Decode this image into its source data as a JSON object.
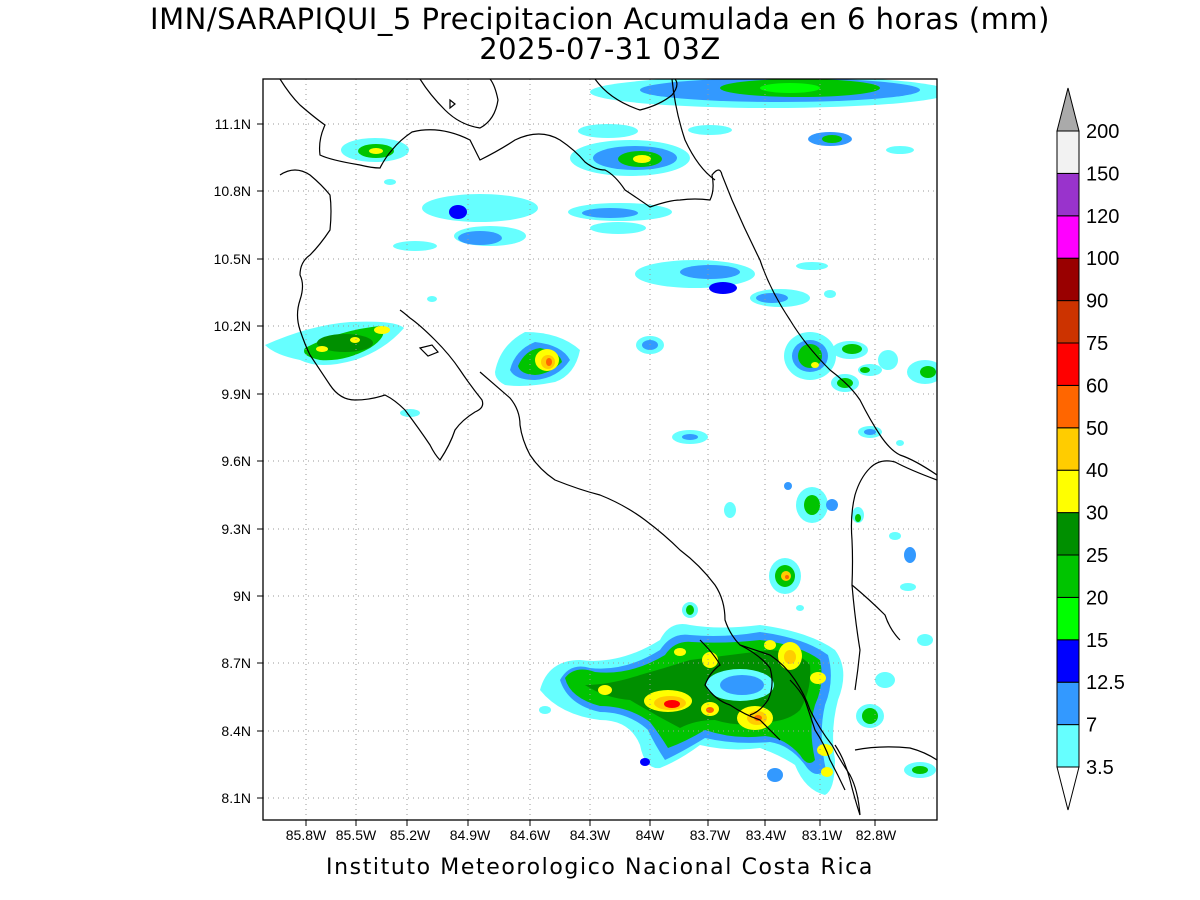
{
  "title": "IMN/SARAPIQUI_5 Precipitacion Acumulada en 6 horas (mm)",
  "subtitle": "2025-07-31 03Z",
  "footer": "Instituto Meteorologico Nacional Costa Rica",
  "map": {
    "lon_range": [
      -86.0,
      -83.0
    ],
    "lat_range": [
      8.0,
      11.3
    ],
    "lon_ticks": [
      "85.8W",
      "85.5W",
      "85.2W",
      "84.9W",
      "84.6W",
      "84.3W",
      "84W",
      "83.7W",
      "83.4W",
      "83.1W",
      "82.8W"
    ],
    "lat_ticks": [
      "11.1N",
      "10.8N",
      "10.5N",
      "10.2N",
      "9.9N",
      "9.6N",
      "9.3N",
      "9N",
      "8.7N",
      "8.4N",
      "8.1N"
    ],
    "grid": true
  },
  "colorbar": {
    "levels": [
      "3.5",
      "7",
      "12.5",
      "15",
      "20",
      "25",
      "30",
      "40",
      "50",
      "60",
      "75",
      "90",
      "100",
      "120",
      "150",
      "200"
    ],
    "colors": [
      "#ffffff",
      "#66ffff",
      "#3399ff",
      "#0000ff",
      "#00ff00",
      "#00c400",
      "#008f00",
      "#ffff00",
      "#ffcc00",
      "#ff6600",
      "#ff0000",
      "#cc3300",
      "#990000",
      "#ff00ff",
      "#9933cc",
      "#f2f2f2",
      "#aaaaaa"
    ]
  }
}
